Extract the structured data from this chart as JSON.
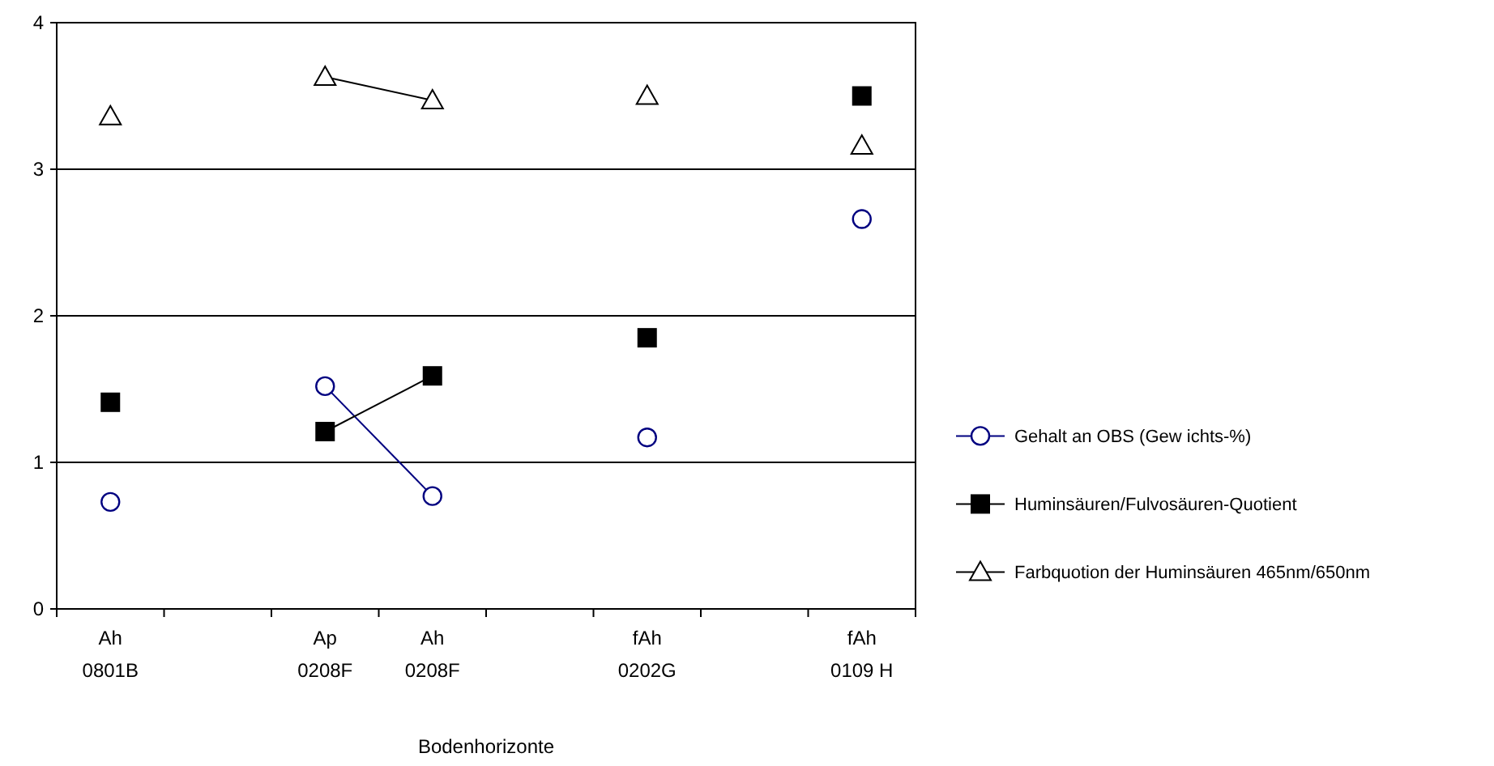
{
  "chart_data": {
    "type": "line",
    "xlabel": "Bodenhorizonte",
    "categories": [
      "Ah\n0801B",
      null,
      "Ap\n0208F",
      "Ah\n0208F",
      null,
      "fAh\n0202G",
      null,
      "fAh\n0109 H"
    ],
    "series": [
      {
        "name": "Gehalt an OBS (Gew ichts-%)",
        "color": "#000080",
        "marker": "circle",
        "values": [
          0.73,
          null,
          1.52,
          0.77,
          null,
          1.17,
          null,
          2.66
        ]
      },
      {
        "name": "Huminsäuren/Fulvosäuren-Quotient",
        "color": "#000000",
        "marker": "square",
        "values": [
          1.41,
          null,
          1.21,
          1.59,
          null,
          1.85,
          null,
          3.5
        ]
      },
      {
        "name": "Farbquotion der Huminsäuren 465nm/650nm",
        "color": "#000000",
        "marker": "triangle",
        "values": [
          3.36,
          null,
          3.63,
          3.47,
          null,
          3.5,
          null,
          3.16
        ]
      }
    ],
    "ylim": [
      0,
      4
    ],
    "yticks": [
      0,
      1,
      2,
      3,
      4
    ],
    "grid": "y",
    "legend": "right"
  }
}
